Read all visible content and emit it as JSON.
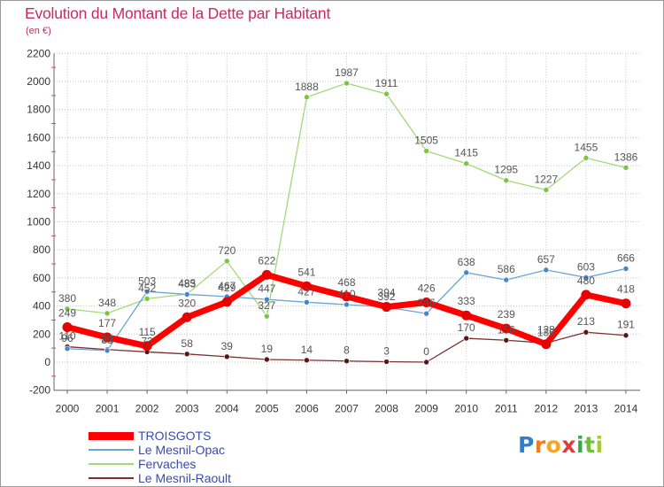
{
  "logo": {
    "text": "Proxiti",
    "colors": [
      "#2f7fd1",
      "#f07c1e",
      "#f5a623",
      "#e23b3b",
      "#3aa84a",
      "#6fbf3e",
      "#a6c936"
    ]
  },
  "chart_data": {
    "type": "line",
    "title": "Evolution du Montant de la Dette par Habitant",
    "subtitle": "(en €)",
    "categories": [
      "2000",
      "2001",
      "2002",
      "2003",
      "2004",
      "2005",
      "2006",
      "2007",
      "2008",
      "2009",
      "2010",
      "2011",
      "2012",
      "2013",
      "2014"
    ],
    "ylim": [
      -200,
      2200
    ],
    "y_ticks": [
      -200,
      0,
      200,
      400,
      600,
      800,
      1000,
      1200,
      1400,
      1600,
      1800,
      2000,
      2200
    ],
    "grid": true,
    "data_labels": true,
    "legend_position": "bottom-left",
    "series": [
      {
        "name": "TROISGOTS",
        "color": "#ff0000",
        "marker_color": "#e60000",
        "values": [
          249,
          177,
          115,
          320,
          429,
          622,
          541,
          468,
          394,
          426,
          333,
          239,
          128,
          480,
          418
        ]
      },
      {
        "name": "Le Mesnil-Opac",
        "color": "#6aa3d8",
        "marker_color": "#3f88cc",
        "values": [
          96,
          83,
          503,
          483,
          467,
          447,
          427,
          410,
          392,
          346,
          638,
          586,
          657,
          603,
          666
        ]
      },
      {
        "name": "Fervaches",
        "color": "#a5d879",
        "marker_color": "#7cc441",
        "values": [
          380,
          348,
          452,
          485,
          720,
          327,
          1888,
          1987,
          1911,
          1505,
          1415,
          1295,
          1227,
          1455,
          1386
        ]
      },
      {
        "name": "Le Mesnil-Raoult",
        "color": "#7e2f2f",
        "marker_color": "#5a1515",
        "values": [
          110,
          90,
          73,
          58,
          39,
          19,
          14,
          8,
          3,
          0,
          170,
          156,
          136,
          213,
          191
        ]
      }
    ]
  }
}
